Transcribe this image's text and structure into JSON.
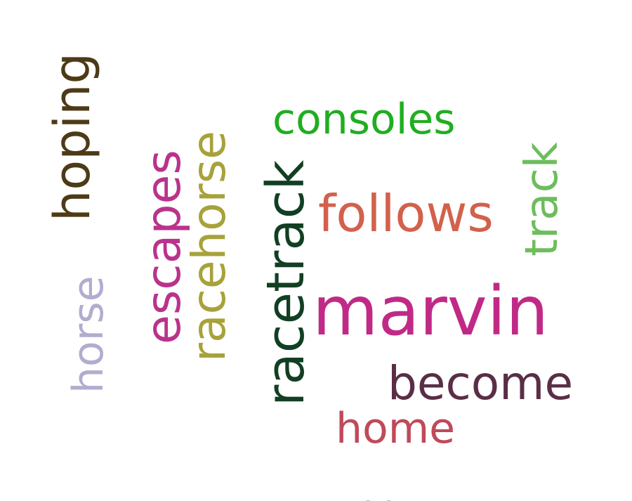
{
  "words": [
    {
      "id": "marvin",
      "text": "marvin",
      "color": "#c02a86",
      "orientation": "horizontal"
    },
    {
      "id": "consoles",
      "text": "consoles",
      "color": "#1fae1f",
      "orientation": "horizontal"
    },
    {
      "id": "follows",
      "text": "follows",
      "color": "#d2614c",
      "orientation": "horizontal"
    },
    {
      "id": "become",
      "text": "become",
      "color": "#5a2e46",
      "orientation": "horizontal"
    },
    {
      "id": "home",
      "text": "home",
      "color": "#bf4a5a",
      "orientation": "horizontal"
    },
    {
      "id": "hoping",
      "text": "hoping",
      "color": "#4d3a17",
      "orientation": "vertical"
    },
    {
      "id": "escapes",
      "text": "escapes",
      "color": "#b9338c",
      "orientation": "vertical"
    },
    {
      "id": "racehorse",
      "text": "racehorse",
      "color": "#a7a23a",
      "orientation": "vertical"
    },
    {
      "id": "racetrack",
      "text": "racetrack",
      "color": "#123f23",
      "orientation": "vertical"
    },
    {
      "id": "horse",
      "text": "horse",
      "color": "#b0adcf",
      "orientation": "vertical"
    },
    {
      "id": "track",
      "text": "track",
      "color": "#6dbd5d",
      "orientation": "vertical"
    },
    {
      "id": "t",
      "text": "t",
      "color": "#b5aab0",
      "orientation": "vertical"
    }
  ]
}
